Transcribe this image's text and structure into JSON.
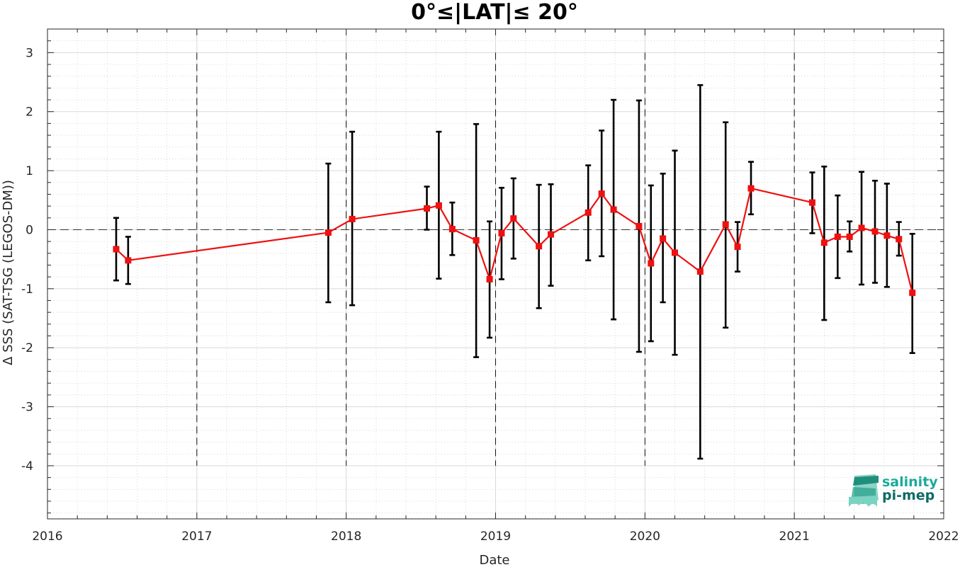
{
  "chart_data": {
    "type": "line",
    "title": "0°≤|LAT|≤ 20°",
    "xlabel": "Date",
    "ylabel": "Δ SSS (SAT-TSG (LEGOS-DM))",
    "xlim": [
      2016,
      2022
    ],
    "ylim": [
      -4.9,
      3.4
    ],
    "x_ticks": [
      "2016",
      "2017",
      "2018",
      "2019",
      "2020",
      "2021",
      "2022"
    ],
    "y_ticks": [
      "3",
      "2",
      "1",
      "0",
      "-1",
      "-2",
      "-3",
      "-4"
    ],
    "grid": true,
    "year_separators": [
      2017,
      2018,
      2019,
      2020,
      2021
    ],
    "zero_line": 0,
    "series": [
      {
        "color": "#ee1111",
        "marker": "square",
        "error_bar_color": "#000000",
        "points": [
          {
            "x": 2016.46,
            "y": -0.33,
            "lo": -0.86,
            "hi": 0.2
          },
          {
            "x": 2016.54,
            "y": -0.52,
            "lo": -0.92,
            "hi": -0.12
          },
          {
            "x": 2017.88,
            "y": -0.05,
            "lo": -1.23,
            "hi": 1.12
          },
          {
            "x": 2018.04,
            "y": 0.18,
            "lo": -1.28,
            "hi": 1.66
          },
          {
            "x": 2018.54,
            "y": 0.36,
            "lo": 0.0,
            "hi": 0.73
          },
          {
            "x": 2018.62,
            "y": 0.41,
            "lo": -0.83,
            "hi": 1.66
          },
          {
            "x": 2018.71,
            "y": 0.01,
            "lo": -0.43,
            "hi": 0.46
          },
          {
            "x": 2018.87,
            "y": -0.18,
            "lo": -2.16,
            "hi": 1.79
          },
          {
            "x": 2018.96,
            "y": -0.84,
            "lo": -1.83,
            "hi": 0.14
          },
          {
            "x": 2019.04,
            "y": -0.06,
            "lo": -0.84,
            "hi": 0.71
          },
          {
            "x": 2019.12,
            "y": 0.19,
            "lo": -0.49,
            "hi": 0.87
          },
          {
            "x": 2019.29,
            "y": -0.28,
            "lo": -1.33,
            "hi": 0.76
          },
          {
            "x": 2019.37,
            "y": -0.08,
            "lo": -0.95,
            "hi": 0.77
          },
          {
            "x": 2019.62,
            "y": 0.29,
            "lo": -0.52,
            "hi": 1.09
          },
          {
            "x": 2019.71,
            "y": 0.61,
            "lo": -0.45,
            "hi": 1.68
          },
          {
            "x": 2019.79,
            "y": 0.34,
            "lo": -1.52,
            "hi": 2.2
          },
          {
            "x": 2019.96,
            "y": 0.06,
            "lo": -2.07,
            "hi": 2.19
          },
          {
            "x": 2020.04,
            "y": -0.57,
            "lo": -1.89,
            "hi": 0.75
          },
          {
            "x": 2020.12,
            "y": -0.15,
            "lo": -1.23,
            "hi": 0.95
          },
          {
            "x": 2020.2,
            "y": -0.39,
            "lo": -2.12,
            "hi": 1.34
          },
          {
            "x": 2020.37,
            "y": -0.71,
            "lo": -3.88,
            "hi": 2.45
          },
          {
            "x": 2020.54,
            "y": 0.09,
            "lo": -1.66,
            "hi": 1.82
          },
          {
            "x": 2020.62,
            "y": -0.29,
            "lo": -0.71,
            "hi": 0.13
          },
          {
            "x": 2020.71,
            "y": 0.7,
            "lo": 0.26,
            "hi": 1.15
          },
          {
            "x": 2021.12,
            "y": 0.46,
            "lo": -0.06,
            "hi": 0.97
          },
          {
            "x": 2021.2,
            "y": -0.22,
            "lo": -1.53,
            "hi": 1.07
          },
          {
            "x": 2021.29,
            "y": -0.12,
            "lo": -0.82,
            "hi": 0.58
          },
          {
            "x": 2021.37,
            "y": -0.12,
            "lo": -0.37,
            "hi": 0.14
          },
          {
            "x": 2021.45,
            "y": 0.03,
            "lo": -0.93,
            "hi": 0.98
          },
          {
            "x": 2021.54,
            "y": -0.03,
            "lo": -0.9,
            "hi": 0.83
          },
          {
            "x": 2021.62,
            "y": -0.1,
            "lo": -0.97,
            "hi": 0.78
          },
          {
            "x": 2021.7,
            "y": -0.16,
            "lo": -0.44,
            "hi": 0.13
          },
          {
            "x": 2021.79,
            "y": -1.07,
            "lo": -2.09,
            "hi": -0.07
          }
        ]
      }
    ]
  },
  "logo": {
    "line1": "salinity",
    "line2": "pi-mep",
    "color1": "#1aaa9a",
    "color2": "#0e6b63"
  }
}
